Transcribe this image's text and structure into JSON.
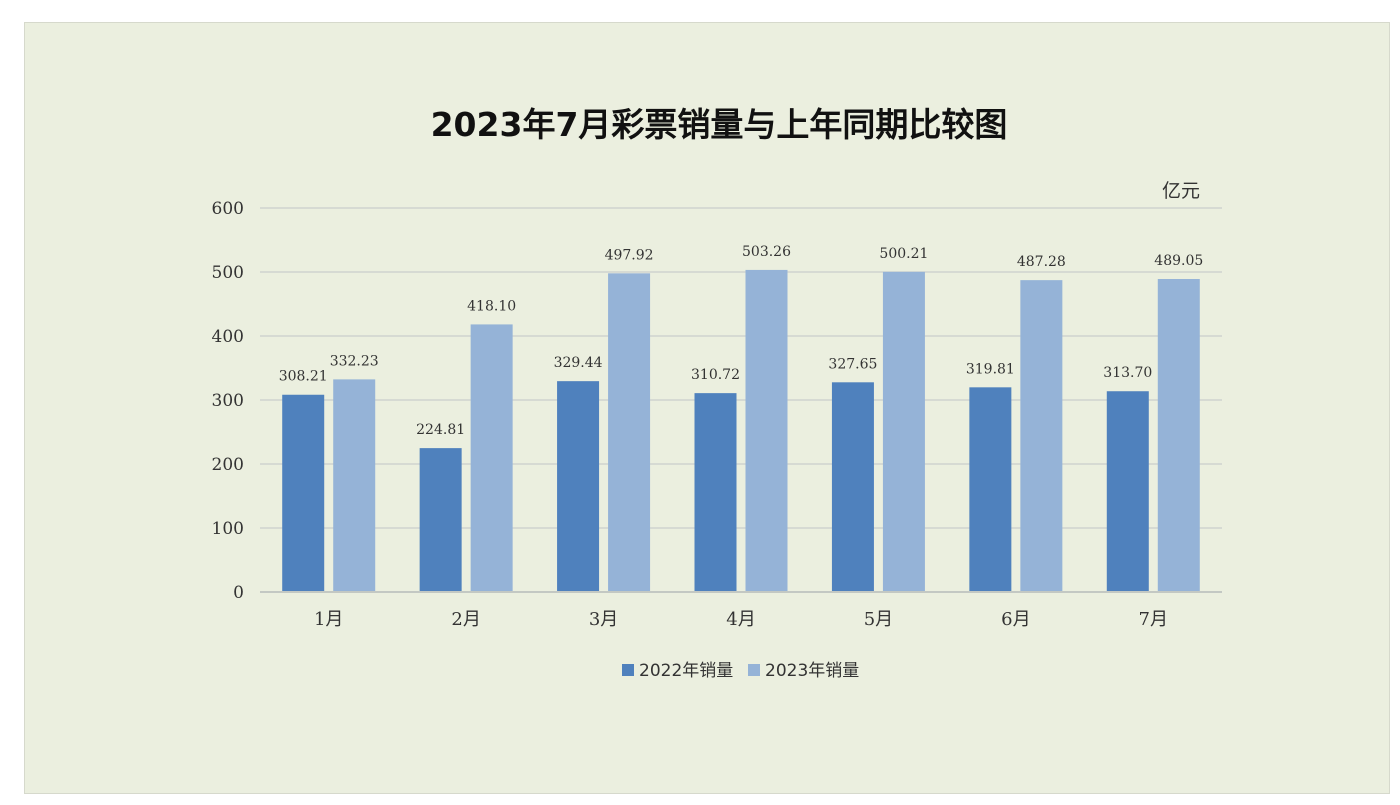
{
  "chart_data": {
    "type": "bar",
    "title": "2023年7月彩票销量与上年同期比较图",
    "unit": "亿元",
    "categories": [
      "1月",
      "2月",
      "3月",
      "4月",
      "5月",
      "6月",
      "7月"
    ],
    "series": [
      {
        "name": "2022年销量",
        "color": "#4f81bd",
        "values": [
          308.21,
          224.81,
          329.44,
          310.72,
          327.65,
          319.81,
          313.7
        ],
        "labels": [
          "308.21",
          "224.81",
          "329.44",
          "310.72",
          "327.65",
          "319.81",
          "313.70"
        ]
      },
      {
        "name": "2023年销量",
        "color": "#95b3d7",
        "values": [
          332.23,
          418.1,
          497.92,
          503.26,
          500.21,
          487.28,
          489.05
        ],
        "labels": [
          "332.23",
          "418.10",
          "497.92",
          "503.26",
          "500.21",
          "487.28",
          "489.05"
        ]
      }
    ],
    "ylim": [
      0,
      600
    ],
    "yticks": [
      "0",
      "100",
      "200",
      "300",
      "400",
      "500",
      "600"
    ],
    "grid": true,
    "legend_position": "bottom"
  }
}
